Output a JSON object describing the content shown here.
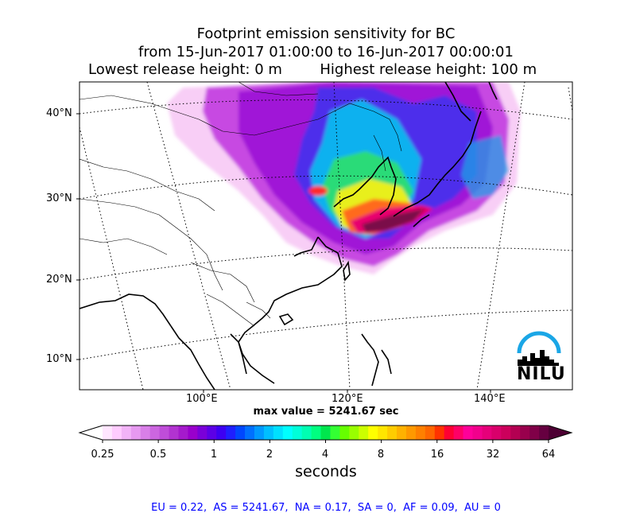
{
  "title": {
    "line1": "Footprint emission sensitivity for BC",
    "line2": "from 15-Jun-2017 01:00:00 to 16-Jun-2017 00:00:01",
    "line3_left": "Lowest release height: 0 m",
    "line3_right": "Highest release height: 100 m"
  },
  "map": {
    "lat_labels": [
      "40°N",
      "30°N",
      "20°N",
      "10°N"
    ],
    "lon_labels": [
      "100°E",
      "120°E",
      "140°E"
    ],
    "max_value_text": "max value = 5241.67 sec"
  },
  "colorbar": {
    "ticks": [
      "0.25",
      "0.5",
      "1",
      "2",
      "4",
      "8",
      "16",
      "32",
      "64"
    ],
    "unit": "seconds",
    "colors": [
      "#ffe6ff",
      "#ffccff",
      "#f2b3f7",
      "#e699f0",
      "#d97fe8",
      "#cc66e0",
      "#bf4dd9",
      "#b233d1",
      "#a51acc",
      "#9900cc",
      "#7a00d9",
      "#5c00e6",
      "#3d00f2",
      "#1f1fff",
      "#0047ff",
      "#0070ff",
      "#0099ff",
      "#00bfff",
      "#00e0ff",
      "#00ffff",
      "#00ffd9",
      "#00ffb2",
      "#00ff80",
      "#00e64d",
      "#33ff33",
      "#66ff00",
      "#99ff00",
      "#ccff00",
      "#ffff00",
      "#ffe600",
      "#ffcc00",
      "#ffb200",
      "#ff9900",
      "#ff8000",
      "#ff6600",
      "#ff3300",
      "#ff0033",
      "#ff0066",
      "#ff0099",
      "#f2008c",
      "#e6007a",
      "#d9006b",
      "#cc005c",
      "#b30052",
      "#99004d",
      "#800048",
      "#660040"
    ]
  },
  "region_summary": "EU = 0.22,  AS = 5241.67,  NA = 0.17,  SA = 0,  AF = 0.09,  AU = 0",
  "logo": {
    "text": "NILU"
  }
}
